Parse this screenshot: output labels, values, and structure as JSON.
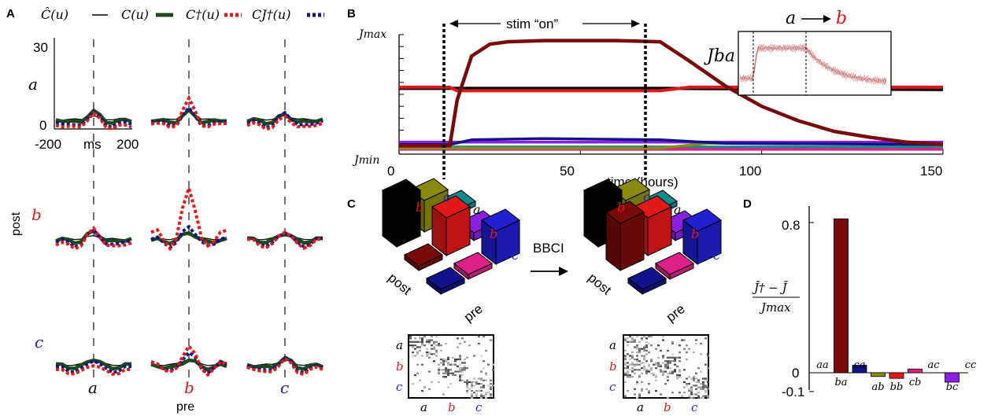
{
  "panels": {
    "a": "A",
    "b": "B",
    "c": "C",
    "d": "D"
  },
  "colors": {
    "a": "#000000",
    "b": "#e01818",
    "c": "#2020d0",
    "dark_red": "#7a0a0a",
    "green": "#1a4a1a",
    "red_dot": "#e81818",
    "navy_dot": "#12128a"
  },
  "panel_a": {
    "legend": [
      {
        "label": "Ĉ(u)",
        "style": "black-line"
      },
      {
        "label": "C(u)",
        "style": "green-thick"
      },
      {
        "label": "C†(u)",
        "style": "red-dotted"
      },
      {
        "label": "CJ†(u)",
        "style": "navy-dotted"
      }
    ],
    "y_ticks": [
      "30",
      "0"
    ],
    "x_ticks": [
      "-200",
      "200"
    ],
    "x_unit": "ms",
    "row_labels": [
      "a",
      "b",
      "c"
    ],
    "col_labels": [
      "a",
      "b",
      "c"
    ],
    "y_axis_label": "post",
    "x_axis_label": "pre"
  },
  "panel_b": {
    "stim_label": "stim “on”",
    "y_max_label": "Jmax",
    "y_min_label": "Jmin",
    "x_ticks": [
      "0",
      "50",
      "100",
      "150"
    ],
    "x_label": "time (hours)",
    "inset_title_from": "a",
    "inset_title_to": "b",
    "inset_ylabel": "Jba",
    "chart_data": {
      "type": "line",
      "xlim": [
        0,
        150
      ],
      "ylim": [
        0,
        1
      ],
      "stim_on": [
        14,
        72
      ],
      "series": [
        {
          "color": "#7a0a0a",
          "x": [
            0,
            14,
            16,
            20,
            25,
            30,
            40,
            50,
            60,
            72,
            80,
            90,
            100,
            110,
            120,
            130,
            140,
            150
          ],
          "y": [
            0.07,
            0.07,
            0.45,
            0.82,
            0.92,
            0.94,
            0.95,
            0.95,
            0.95,
            0.94,
            0.78,
            0.57,
            0.4,
            0.28,
            0.19,
            0.14,
            0.1,
            0.08
          ]
        },
        {
          "color": "#e01818",
          "x": [
            0,
            14,
            16,
            72,
            80,
            150
          ],
          "y": [
            0.56,
            0.56,
            0.53,
            0.53,
            0.56,
            0.56
          ]
        },
        {
          "color": "#000000",
          "x": [
            0,
            14,
            72,
            150
          ],
          "y": [
            0.55,
            0.55,
            0.55,
            0.54
          ]
        },
        {
          "color": "#12128a",
          "x": [
            0,
            14,
            20,
            40,
            72,
            90,
            150
          ],
          "y": [
            0.08,
            0.08,
            0.12,
            0.13,
            0.12,
            0.09,
            0.08
          ]
        },
        {
          "color": "#8a20e0",
          "x": [
            0,
            150
          ],
          "y": [
            0.1,
            0.1
          ]
        },
        {
          "color": "#8a8a10",
          "x": [
            0,
            72,
            85,
            150
          ],
          "y": [
            0.05,
            0.05,
            0.09,
            0.09
          ]
        },
        {
          "color": "#e0208a",
          "x": [
            0,
            150
          ],
          "y": [
            0.04,
            0.04
          ]
        },
        {
          "color": "#108a8a",
          "x": [
            0,
            150
          ],
          "y": [
            0.06,
            0.06
          ]
        }
      ]
    }
  },
  "panel_c": {
    "arrow_label": "BBCI",
    "top_labels": [
      "a",
      "b",
      "c"
    ],
    "side_labels": [
      "a",
      "b",
      "c"
    ],
    "axis_post": "post",
    "axis_pre": "pre",
    "matrix_row_labels": [
      "a",
      "b",
      "c"
    ],
    "matrix_col_labels": [
      "a",
      "b",
      "c"
    ]
  },
  "panel_d": {
    "ylabel_top": "J̄† − J̄",
    "ylabel_bottom": "Jmax",
    "y_ticks": [
      "0.8",
      "0",
      "-0.1"
    ],
    "chart_data": {
      "type": "bar",
      "categories": [
        "aa",
        "ba",
        "ca",
        "ab",
        "bb",
        "cb",
        "ac",
        "bc",
        "cc"
      ],
      "values": [
        0.0,
        0.82,
        0.04,
        -0.02,
        -0.03,
        0.02,
        0.0,
        -0.05,
        0.0
      ],
      "colors": [
        "#000000",
        "#7a0a0a",
        "#12128a",
        "#8a8a10",
        "#e01818",
        "#e0208a",
        "#108a8a",
        "#8a20e0",
        "#2020d0"
      ],
      "ylim": [
        -0.1,
        0.9
      ]
    }
  }
}
